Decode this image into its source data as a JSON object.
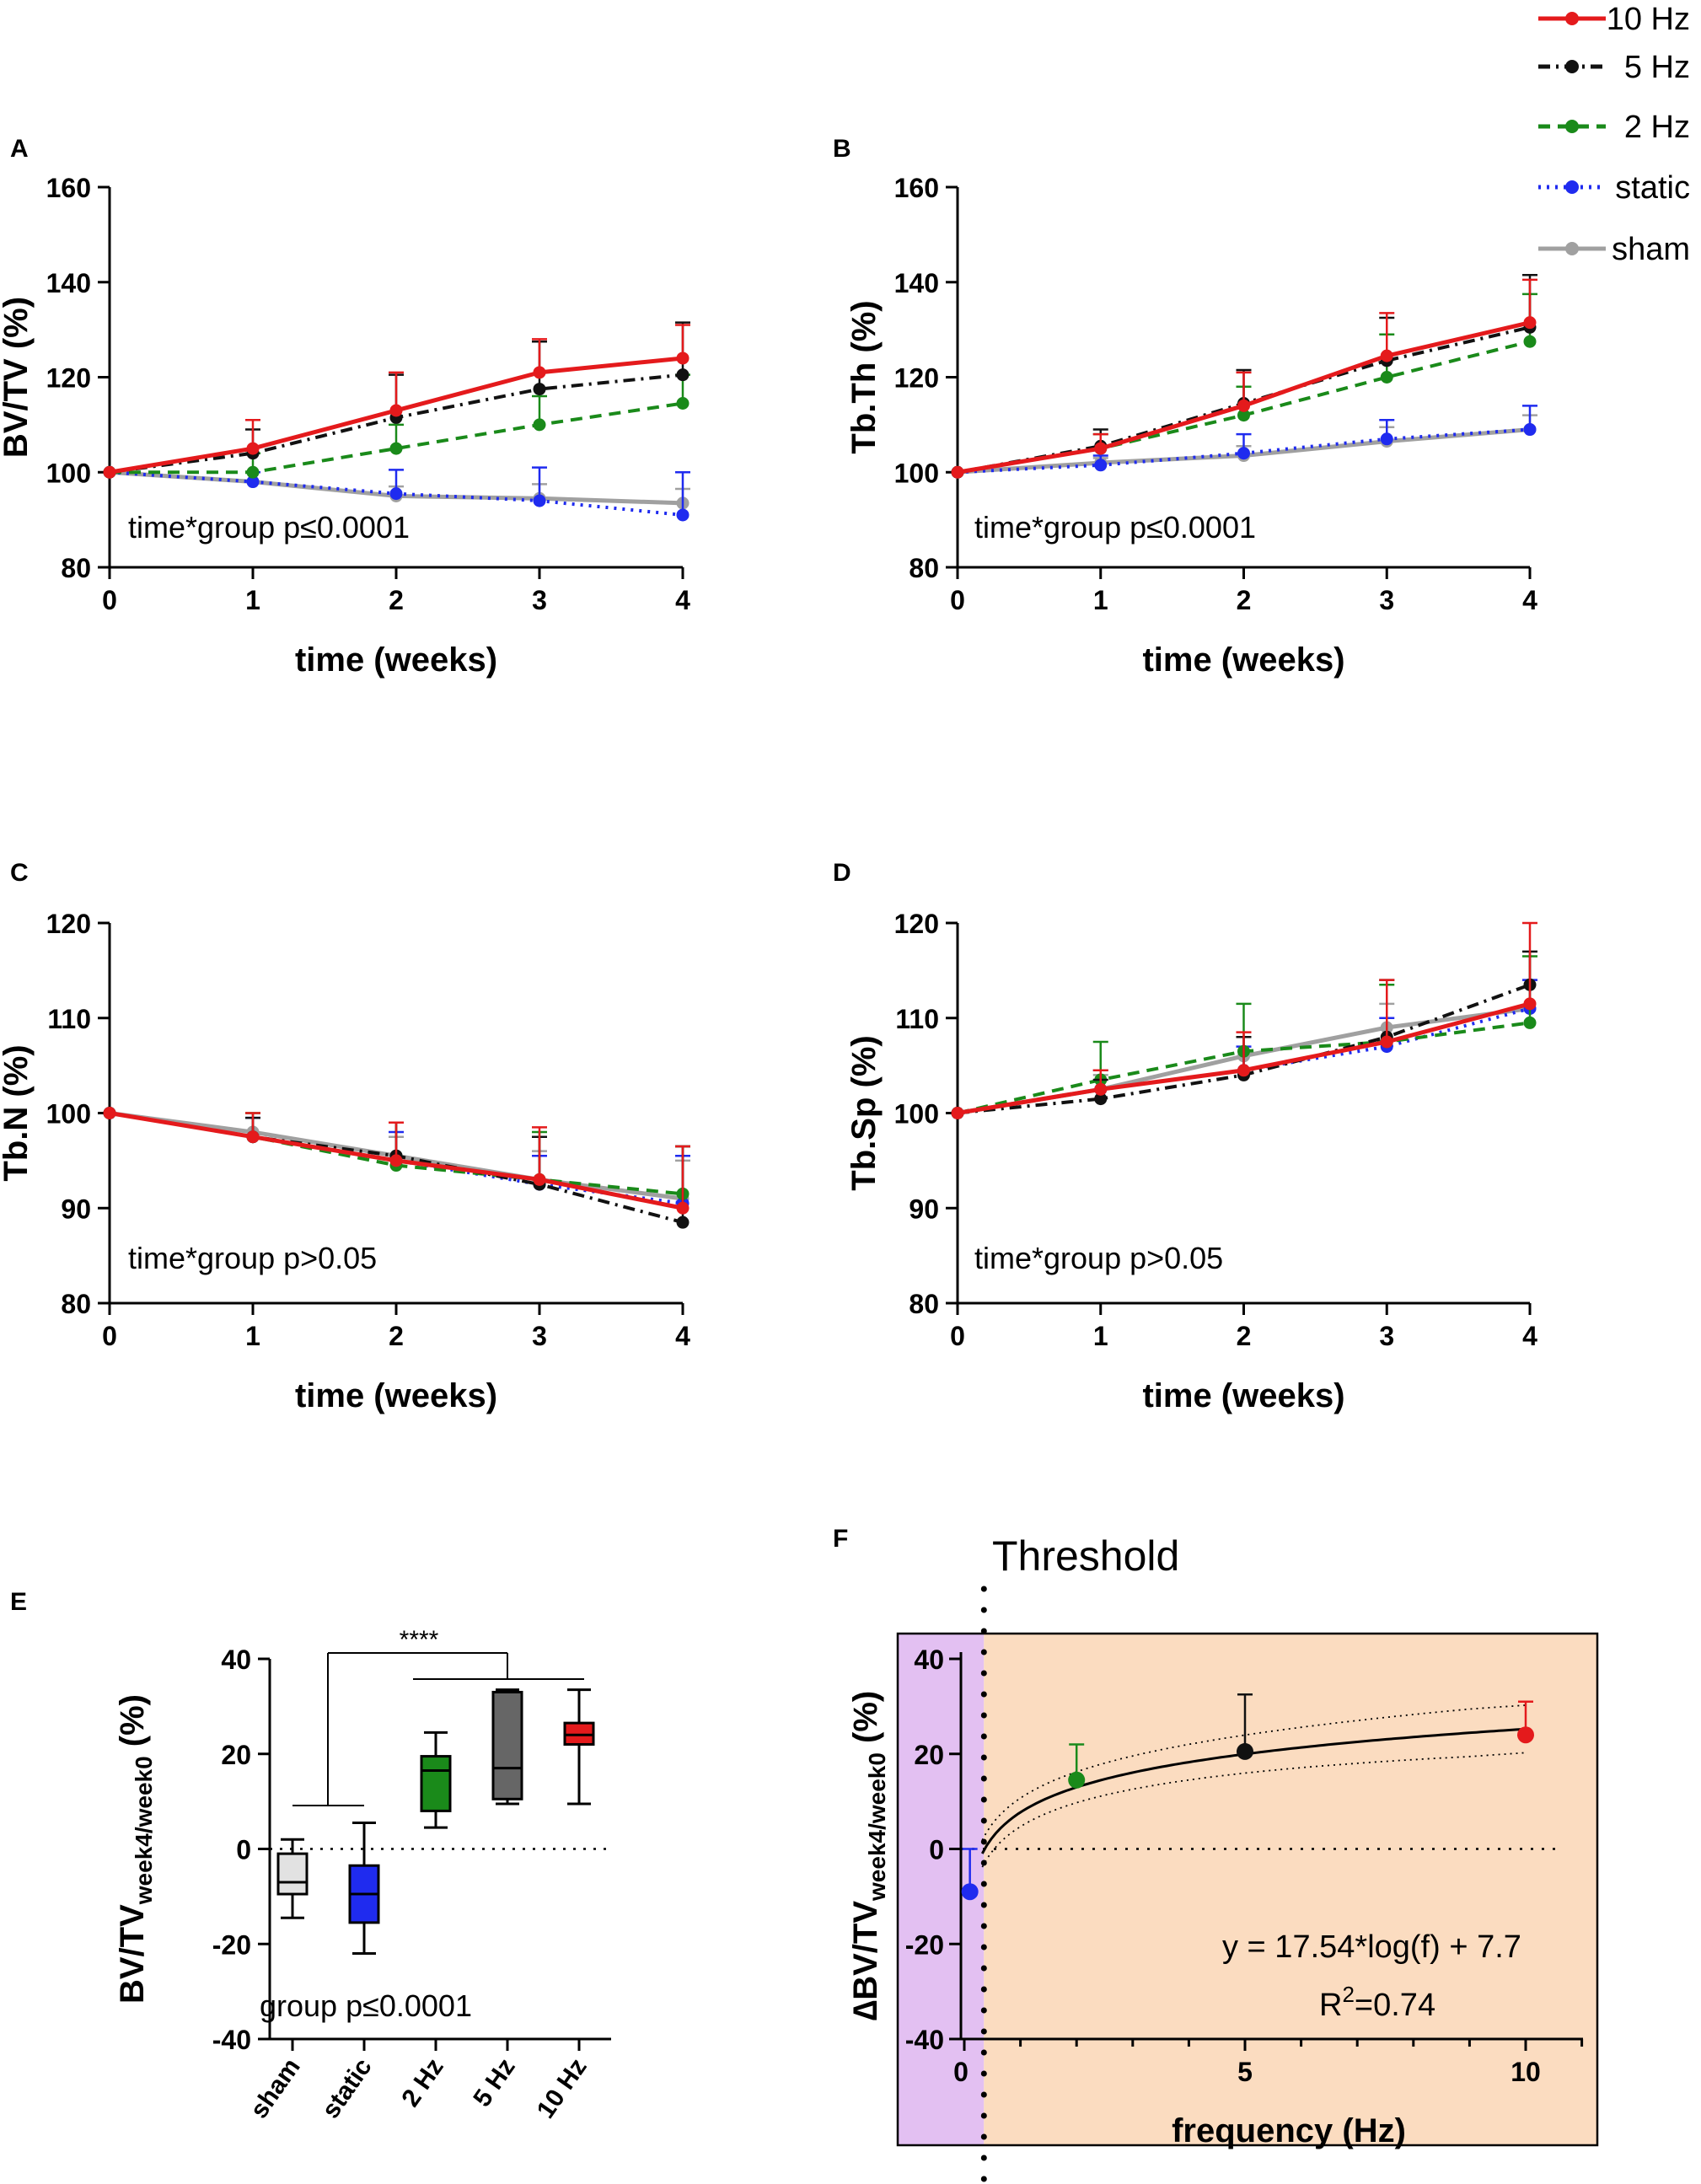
{
  "colors": {
    "10hz": "#e41a1c",
    "5hz": "#111111",
    "2hz": "#1a8a1a",
    "static": "#1f2bef",
    "sham": "#a0a0a0",
    "threshold_left_bg": "#e3c0f2",
    "threshold_right_bg": "#fbdcc0"
  },
  "legend": [
    {
      "key": "10hz",
      "label": "10 Hz",
      "style": "solid"
    },
    {
      "key": "5hz",
      "label": "5 Hz",
      "style": "dashdot"
    },
    {
      "key": "2hz",
      "label": "2 Hz",
      "style": "dash"
    },
    {
      "key": "static",
      "label": "static",
      "style": "dot"
    },
    {
      "key": "sham",
      "label": "sham",
      "style": "solid"
    }
  ],
  "chart_data": [
    {
      "panel": "A",
      "type": "line",
      "ylabel": "BV/TV (%)",
      "xlabel": "time (weeks)",
      "x": [
        0,
        1,
        2,
        3,
        4
      ],
      "xlim": [
        0,
        4
      ],
      "ylim": [
        80,
        160
      ],
      "yticks": [
        80,
        100,
        120,
        140,
        160
      ],
      "annotation": "time*group p≤0.0001",
      "series": [
        {
          "key": "10hz",
          "values": [
            100,
            105,
            113,
            121,
            124
          ],
          "err": [
            0,
            6,
            8,
            7,
            7
          ]
        },
        {
          "key": "5hz",
          "values": [
            100,
            104,
            111.5,
            117.5,
            120.5
          ],
          "err": [
            0,
            5,
            9,
            10,
            11
          ]
        },
        {
          "key": "2hz",
          "values": [
            100,
            100,
            105,
            110,
            114.5
          ],
          "err": [
            0,
            4,
            5,
            6,
            6
          ]
        },
        {
          "key": "static",
          "values": [
            100,
            98,
            95.5,
            94,
            91
          ],
          "err": [
            0,
            2,
            5,
            7,
            9
          ]
        },
        {
          "key": "sham",
          "values": [
            100,
            98,
            95,
            94.5,
            93.5
          ],
          "err": [
            0,
            2,
            2,
            3,
            3
          ]
        }
      ]
    },
    {
      "panel": "B",
      "type": "line",
      "ylabel": "Tb.Th (%)",
      "xlabel": "time (weeks)",
      "x": [
        0,
        1,
        2,
        3,
        4
      ],
      "xlim": [
        0,
        4
      ],
      "ylim": [
        80,
        160
      ],
      "yticks": [
        80,
        100,
        120,
        140,
        160
      ],
      "annotation": "time*group p≤0.0001",
      "series": [
        {
          "key": "10hz",
          "values": [
            100,
            105,
            114,
            124.5,
            131.5
          ],
          "err": [
            0,
            3,
            7,
            9,
            9
          ]
        },
        {
          "key": "5hz",
          "values": [
            100,
            105.5,
            114.5,
            123.5,
            130.5
          ],
          "err": [
            0,
            3.5,
            7,
            9,
            11
          ]
        },
        {
          "key": "2hz",
          "values": [
            100,
            105,
            112,
            120,
            127.5
          ],
          "err": [
            0,
            3,
            6,
            9,
            10
          ]
        },
        {
          "key": "static",
          "values": [
            100,
            101.5,
            104,
            107,
            109
          ],
          "err": [
            0,
            2,
            4,
            4,
            5
          ]
        },
        {
          "key": "sham",
          "values": [
            100,
            102,
            103.5,
            106.5,
            109
          ],
          "err": [
            0,
            1,
            2,
            3,
            3
          ]
        }
      ]
    },
    {
      "panel": "C",
      "type": "line",
      "ylabel": "Tb.N (%)",
      "xlabel": "time (weeks)",
      "x": [
        0,
        1,
        2,
        3,
        4
      ],
      "xlim": [
        0,
        4
      ],
      "ylim": [
        80,
        120
      ],
      "yticks": [
        80,
        90,
        100,
        110,
        120
      ],
      "annotation": "time*group p>0.05",
      "series": [
        {
          "key": "10hz",
          "values": [
            100,
            97.5,
            95,
            93,
            90
          ],
          "err": [
            0,
            2.5,
            4,
            5.5,
            6.5
          ]
        },
        {
          "key": "5hz",
          "values": [
            100,
            97.5,
            95.5,
            92.5,
            88.5
          ],
          "err": [
            0,
            2,
            3.5,
            5,
            8
          ]
        },
        {
          "key": "2hz",
          "values": [
            100,
            97.5,
            94.5,
            93,
            91.5
          ],
          "err": [
            0,
            2.5,
            4.5,
            5,
            5
          ]
        },
        {
          "key": "static",
          "values": [
            100,
            97.5,
            95,
            92.5,
            90.5
          ],
          "err": [
            0,
            2,
            3,
            3,
            5
          ]
        },
        {
          "key": "sham",
          "values": [
            100,
            98,
            95.5,
            93,
            91
          ],
          "err": [
            0,
            2,
            2,
            3,
            4
          ]
        }
      ]
    },
    {
      "panel": "D",
      "type": "line",
      "ylabel": "Tb.Sp (%)",
      "xlabel": "time (weeks)",
      "x": [
        0,
        1,
        2,
        3,
        4
      ],
      "xlim": [
        0,
        4
      ],
      "ylim": [
        80,
        120
      ],
      "yticks": [
        80,
        90,
        100,
        110,
        120
      ],
      "annotation": "time*group p>0.05",
      "series": [
        {
          "key": "10hz",
          "values": [
            100,
            102.5,
            104.5,
            107.5,
            111.5
          ],
          "err": [
            0,
            2,
            4,
            6.5,
            8.5
          ]
        },
        {
          "key": "5hz",
          "values": [
            100,
            101.5,
            104,
            108,
            113.5
          ],
          "err": [
            0,
            2,
            4,
            6,
            3.5
          ]
        },
        {
          "key": "2hz",
          "values": [
            100,
            103.5,
            106.5,
            107.5,
            109.5
          ],
          "err": [
            0,
            4,
            5,
            6,
            7
          ]
        },
        {
          "key": "static",
          "values": [
            100,
            102.5,
            104.5,
            107,
            111
          ],
          "err": [
            0,
            2,
            2.5,
            3,
            3
          ]
        },
        {
          "key": "sham",
          "values": [
            100,
            102.5,
            106,
            109,
            111
          ],
          "err": [
            0,
            1.5,
            2,
            2.5,
            3
          ]
        }
      ]
    },
    {
      "panel": "E",
      "type": "box",
      "ylabel_main": "BV/TV",
      "ylabel_sub": "week4/week0",
      "ylabel_unit": " (%)",
      "ylim": [
        -40,
        40
      ],
      "yticks": [
        -40,
        -20,
        0,
        20,
        40
      ],
      "annotation": "group p≤0.0001",
      "significance": "****",
      "categories": [
        "sham",
        "static",
        "2 Hz",
        "5 Hz",
        "10 Hz"
      ],
      "boxes": [
        {
          "key": "sham",
          "min": -14.5,
          "q1": -9.5,
          "median": -7,
          "q3": -1,
          "max": 2,
          "fill": "#e2e2e2"
        },
        {
          "key": "static",
          "min": -22,
          "q1": -15.5,
          "median": -9.5,
          "q3": -3.5,
          "max": 5.5,
          "fill": "#1f2bef"
        },
        {
          "key": "2hz",
          "min": 4.5,
          "q1": 8,
          "median": 16.5,
          "q3": 19.5,
          "max": 24.5,
          "fill": "#1a8a1a"
        },
        {
          "key": "5hz",
          "min": 9.5,
          "q1": 10.5,
          "median": 17,
          "q3": 33,
          "max": 33.5,
          "fill": "#666666"
        },
        {
          "key": "10hz",
          "min": 9.5,
          "q1": 22,
          "median": 24,
          "q3": 26.5,
          "max": 33.5,
          "fill": "#e41a1c"
        }
      ]
    },
    {
      "panel": "F",
      "type": "scatter",
      "title": "Threshold",
      "ylabel_main": "∆BV/TV",
      "ylabel_sub": "week4/week0",
      "ylabel_unit": " (%)",
      "xlabel": "frequency (Hz)",
      "xlim": [
        -0.5,
        11.3
      ],
      "ylim": [
        -40,
        40
      ],
      "xticks": [
        0,
        5,
        10
      ],
      "yticks": [
        -40,
        -20,
        0,
        20,
        40
      ],
      "threshold_x": 0.35,
      "equation": "y = 17.54*log(f) + 7.7",
      "r2_prefix": "R",
      "r2_exp": "2",
      "r2_value": "=0.74",
      "fit": {
        "a": 17.54,
        "b": 7.7,
        "ci": 5
      },
      "points": [
        {
          "key": "static",
          "x": 0.1,
          "y": -9,
          "err": 9
        },
        {
          "key": "2hz",
          "x": 2,
          "y": 14.5,
          "err": 7.5
        },
        {
          "key": "5hz",
          "x": 5,
          "y": 20.5,
          "err": 12
        },
        {
          "key": "10hz",
          "x": 10,
          "y": 24,
          "err": 7
        }
      ]
    }
  ]
}
